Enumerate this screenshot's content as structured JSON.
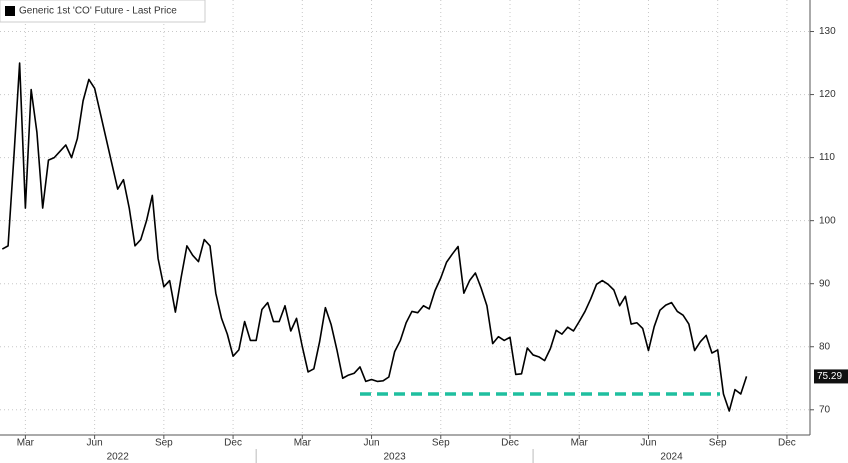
{
  "chart_data": {
    "type": "line",
    "series": [
      {
        "name": "Generic 1st 'CO' Future - Last Price",
        "color": "#000000",
        "values": [
          95.5,
          96,
          110,
          125,
          102,
          120.8,
          114,
          102,
          109.6,
          110,
          111,
          112,
          110,
          113,
          119,
          122.4,
          121,
          117,
          113,
          109,
          105,
          106.5,
          102,
          96,
          97,
          100,
          104,
          94,
          89.5,
          90.5,
          85.5,
          91,
          96,
          94.5,
          93.5,
          97,
          96,
          88.5,
          84.5,
          82,
          78.5,
          79.5,
          84,
          81,
          81,
          85.9,
          87,
          84,
          84,
          86.5,
          82.5,
          84.5,
          80,
          76,
          76.5,
          80.8,
          86.2,
          83.5,
          79.5,
          75,
          75.5,
          75.8,
          76.8,
          74.5,
          74.8,
          74.5,
          74.6,
          75.2,
          79.2,
          81,
          83.8,
          85.6,
          85.4,
          86.5,
          86,
          88.9,
          90.9,
          93.4,
          94.7,
          95.9,
          88.5,
          90.5,
          91.7,
          89.3,
          86.5,
          80.5,
          81.6,
          81,
          81.5,
          75.6,
          75.7,
          79.8,
          78.7,
          78.4,
          77.8,
          79.7,
          82.6,
          82,
          83.1,
          82.5,
          84,
          85.6,
          87.6,
          89.9,
          90.5,
          89.9,
          89,
          86.5,
          88,
          83.6,
          83.8,
          82.9,
          79.4,
          83.2,
          85.8,
          86.6,
          87,
          85.6,
          85,
          83.6,
          79.4,
          80.8,
          81.8,
          79,
          79.5,
          72.5,
          69.8,
          73.2,
          72.5,
          75.29
        ]
      }
    ],
    "x": [
      1,
      1.25,
      1.5,
      1.75,
      2,
      2.25,
      2.5,
      2.75,
      3,
      3.25,
      3.5,
      3.75,
      4,
      4.25,
      4.5,
      4.75,
      5,
      5.25,
      5.5,
      5.75,
      6,
      6.25,
      6.5,
      6.75,
      7,
      7.25,
      7.5,
      7.75,
      8,
      8.25,
      8.5,
      8.75,
      9,
      9.25,
      9.5,
      9.75,
      10,
      10.25,
      10.5,
      10.75,
      11,
      11.25,
      11.5,
      11.75,
      12,
      12.25,
      12.5,
      12.75,
      13,
      13.25,
      13.5,
      13.75,
      14,
      14.25,
      14.5,
      14.75,
      15,
      15.25,
      15.5,
      15.75,
      16,
      16.25,
      16.5,
      16.75,
      17,
      17.25,
      17.5,
      17.75,
      18,
      18.25,
      18.5,
      18.75,
      19,
      19.25,
      19.5,
      19.75,
      20,
      20.25,
      20.5,
      20.75,
      21,
      21.25,
      21.5,
      21.75,
      22,
      22.25,
      22.5,
      22.75,
      23,
      23.25,
      23.5,
      23.75,
      24,
      24.25,
      24.5,
      24.75,
      25,
      25.25,
      25.5,
      25.75,
      26,
      26.25,
      26.5,
      26.75,
      27,
      27.25,
      27.5,
      27.75,
      28,
      28.25,
      28.5,
      28.75,
      29,
      29.25,
      29.5,
      29.75,
      30,
      30.25,
      30.5,
      30.75,
      31,
      31.25,
      31.5,
      31.75,
      32,
      32.25,
      32.5,
      32.75,
      33,
      33.25
    ],
    "xlim": [
      0.9,
      36
    ],
    "xticks": [
      {
        "value": 2,
        "label": "Mar"
      },
      {
        "value": 5,
        "label": "Jun"
      },
      {
        "value": 8,
        "label": "Sep"
      },
      {
        "value": 11,
        "label": "Dec"
      },
      {
        "value": 14,
        "label": "Mar"
      },
      {
        "value": 17,
        "label": "Jun"
      },
      {
        "value": 20,
        "label": "Sep"
      },
      {
        "value": 23,
        "label": "Dec"
      },
      {
        "value": 26,
        "label": "Mar"
      },
      {
        "value": 29,
        "label": "Jun"
      },
      {
        "value": 32,
        "label": "Sep"
      },
      {
        "value": 35,
        "label": "Dec"
      }
    ],
    "xgroups": [
      {
        "value": 6,
        "label": "2022"
      },
      {
        "value": 18,
        "label": "2023"
      },
      {
        "value": 30,
        "label": "2024"
      }
    ],
    "ylim": [
      66,
      135
    ],
    "yticks": [
      70,
      80,
      90,
      100,
      110,
      120,
      130
    ],
    "grid": true,
    "hline": {
      "value": 72.5,
      "xstart": 16.5,
      "xend": 32.1,
      "color": "#1fbf9f"
    }
  }
}
